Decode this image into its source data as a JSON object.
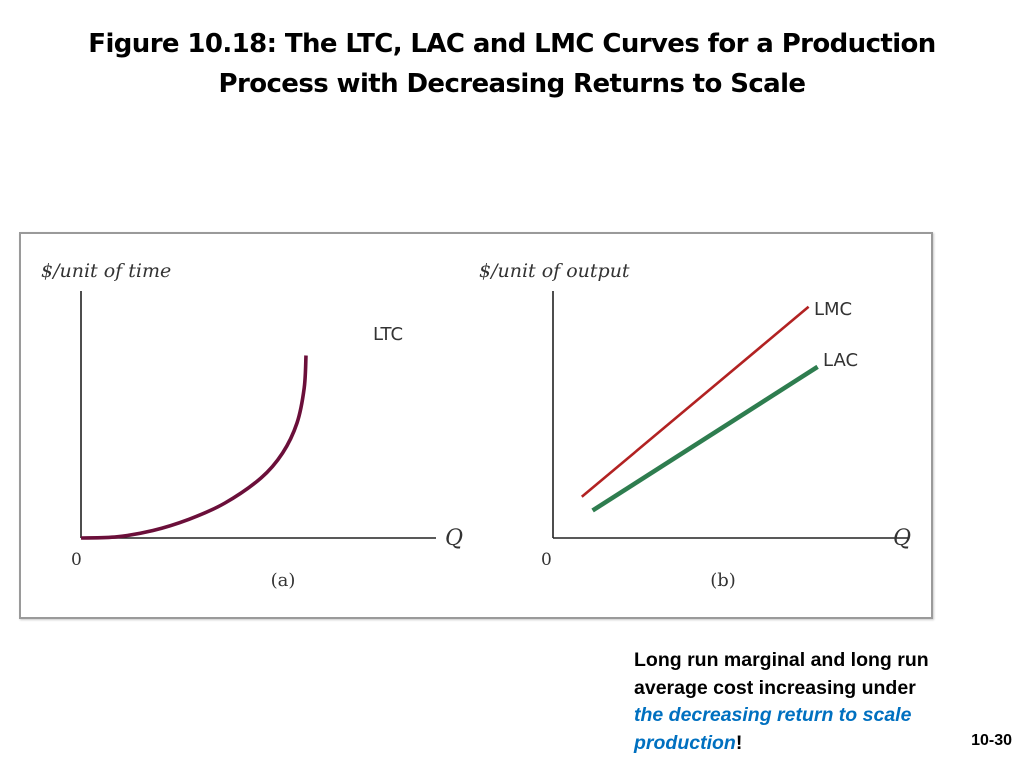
{
  "slide": {
    "title_line1": "Figure 10.18: The LTC, LAC and LMC Curves for a Production",
    "title_line2": "Process with Decreasing Returns to Scale",
    "note": {
      "line1": "Long run marginal and long run",
      "line2": "average cost increasing under",
      "highlight_line1": "the decreasing return to scale",
      "highlight_line2": "production",
      "suffix": "!"
    },
    "page_number": "10-30"
  },
  "colors": {
    "ltc": "#6b0f3a",
    "lmc": "#b22222",
    "lac": "#2e7d4f",
    "axis": "#222222",
    "highlight_text": "#0070c0"
  },
  "chart_data": [
    {
      "type": "line",
      "panel_label": "(a)",
      "ylabel": "$/unit of time",
      "xlabel": "Q",
      "origin_label": "0",
      "xlim": [
        0,
        10
      ],
      "ylim": [
        0,
        10
      ],
      "series": [
        {
          "name": "LTC",
          "color": "#6b0f3a",
          "x": [
            0.0,
            1.0,
            2.0,
            3.0,
            4.0,
            5.0,
            5.6,
            6.0,
            6.2,
            6.25
          ],
          "y": [
            0.0,
            0.05,
            0.3,
            0.75,
            1.4,
            2.4,
            3.4,
            4.6,
            6.0,
            7.3
          ]
        }
      ]
    },
    {
      "type": "line",
      "panel_label": "(b)",
      "ylabel": "$/unit of output",
      "xlabel": "Q",
      "origin_label": "0",
      "xlim": [
        0,
        10
      ],
      "ylim": [
        0,
        10
      ],
      "series": [
        {
          "name": "LMC",
          "color": "#b22222",
          "x": [
            0.8,
            7.1
          ],
          "y": [
            1.65,
            9.25
          ]
        },
        {
          "name": "LAC",
          "color": "#2e7d4f",
          "x": [
            1.1,
            7.35
          ],
          "y": [
            1.1,
            6.85
          ]
        }
      ]
    }
  ]
}
